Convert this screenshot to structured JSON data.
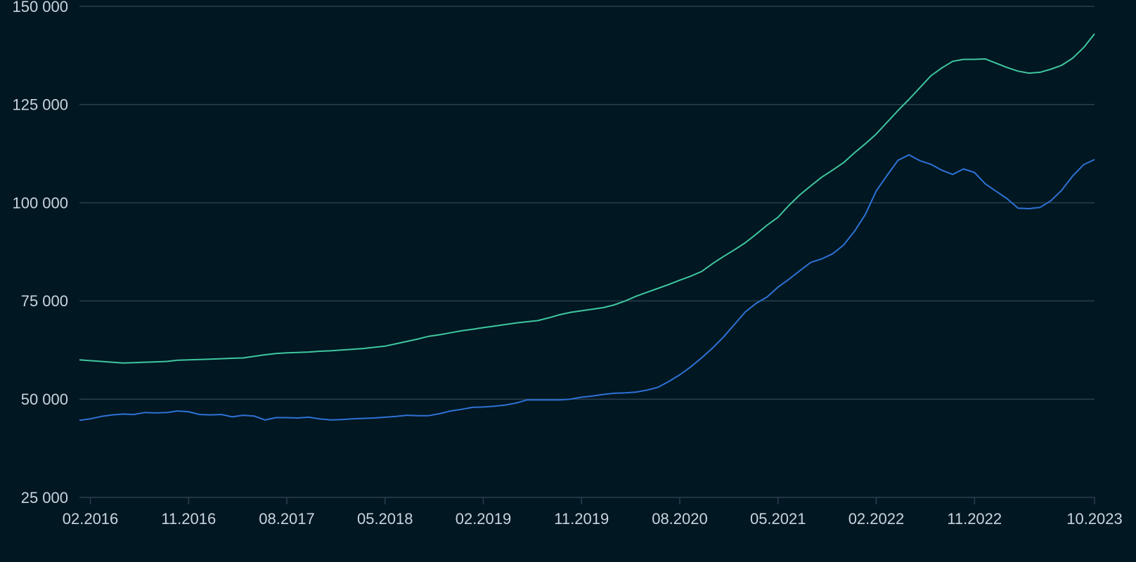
{
  "chart_data": {
    "type": "line",
    "x": [
      "01.2016",
      "02.2016",
      "03.2016",
      "04.2016",
      "05.2016",
      "06.2016",
      "07.2016",
      "08.2016",
      "09.2016",
      "10.2016",
      "11.2016",
      "12.2016",
      "01.2017",
      "02.2017",
      "03.2017",
      "04.2017",
      "05.2017",
      "06.2017",
      "07.2017",
      "08.2017",
      "09.2017",
      "10.2017",
      "11.2017",
      "12.2017",
      "01.2018",
      "02.2018",
      "03.2018",
      "04.2018",
      "05.2018",
      "06.2018",
      "07.2018",
      "08.2018",
      "09.2018",
      "10.2018",
      "11.2018",
      "12.2018",
      "01.2019",
      "02.2019",
      "03.2019",
      "04.2019",
      "05.2019",
      "06.2019",
      "07.2019",
      "08.2019",
      "09.2019",
      "10.2019",
      "11.2019",
      "12.2019",
      "01.2020",
      "02.2020",
      "03.2020",
      "04.2020",
      "05.2020",
      "06.2020",
      "07.2020",
      "08.2020",
      "09.2020",
      "10.2020",
      "11.2020",
      "12.2020",
      "01.2021",
      "02.2021",
      "03.2021",
      "04.2021",
      "05.2021",
      "06.2021",
      "07.2021",
      "08.2021",
      "09.2021",
      "10.2021",
      "11.2021",
      "12.2021",
      "01.2022",
      "02.2022",
      "03.2022",
      "04.2022",
      "05.2022",
      "06.2022",
      "07.2022",
      "08.2022",
      "09.2022",
      "10.2022",
      "11.2022",
      "12.2022",
      "01.2023",
      "02.2023",
      "03.2023",
      "04.2023",
      "05.2023",
      "06.2023",
      "07.2023",
      "08.2023",
      "09.2023",
      "10.2023"
    ],
    "series": [
      {
        "color": "#3fc79f",
        "values": [
          60000,
          59800,
          59600,
          59400,
          59200,
          59300,
          59400,
          59500,
          59600,
          59900,
          60000,
          60100,
          60200,
          60300,
          60400,
          60500,
          60900,
          61300,
          61600,
          61800,
          61900,
          62000,
          62200,
          62300,
          62500,
          62700,
          62900,
          63200,
          63500,
          64100,
          64700,
          65300,
          66000,
          66400,
          66900,
          67400,
          67800,
          68200,
          68600,
          69000,
          69400,
          69700,
          70000,
          70700,
          71500,
          72100,
          72500,
          72900,
          73300,
          74000,
          75000,
          76200,
          77200,
          78200,
          79200,
          80300,
          81300,
          82500,
          84500,
          86300,
          88000,
          89800,
          92000,
          94300,
          96300,
          99300,
          102000,
          104300,
          106500,
          108300,
          110200,
          112700,
          115000,
          117500,
          120500,
          123500,
          126300,
          129300,
          132300,
          134300,
          136000,
          136500,
          136500,
          136600,
          135500,
          134400,
          133500,
          133000,
          133200,
          134000,
          135000,
          136800,
          139500,
          143000
        ]
      },
      {
        "color": "#2e72d6",
        "values": [
          44600,
          45000,
          45600,
          46000,
          46200,
          46100,
          46600,
          46500,
          46600,
          47000,
          46800,
          46100,
          46000,
          46100,
          45500,
          45900,
          45700,
          44700,
          45300,
          45300,
          45200,
          45400,
          45000,
          44700,
          44800,
          45000,
          45100,
          45200,
          45400,
          45600,
          45900,
          45800,
          45800,
          46300,
          47000,
          47400,
          47900,
          48000,
          48200,
          48500,
          49000,
          49800,
          49800,
          49800,
          49800,
          50000,
          50500,
          50800,
          51200,
          51500,
          51600,
          51800,
          52300,
          53000,
          54500,
          56200,
          58200,
          60500,
          63000,
          65800,
          69000,
          72200,
          74400,
          76000,
          78500,
          80500,
          82700,
          84800,
          85700,
          87000,
          89200,
          92700,
          97000,
          103000,
          107000,
          110800,
          112200,
          110700,
          109800,
          108300,
          107200,
          108600,
          107700,
          104800,
          102900,
          101000,
          98600,
          98500,
          98800,
          100500,
          103200,
          106800,
          109700,
          111000
        ]
      }
    ],
    "xticks": [
      "02.2016",
      "11.2016",
      "08.2017",
      "05.2018",
      "02.2019",
      "11.2019",
      "08.2020",
      "05.2021",
      "02.2022",
      "11.2022",
      "10.2023"
    ],
    "ylim": [
      25000,
      150000
    ],
    "yticks": [
      {
        "value": 25000,
        "label": "25 000"
      },
      {
        "value": 50000,
        "label": "50 000"
      },
      {
        "value": 75000,
        "label": "75 000"
      },
      {
        "value": 100000,
        "label": "100 000"
      },
      {
        "value": 125000,
        "label": "125 000"
      },
      {
        "value": 150000,
        "label": "150 000"
      }
    ],
    "grid": true
  }
}
